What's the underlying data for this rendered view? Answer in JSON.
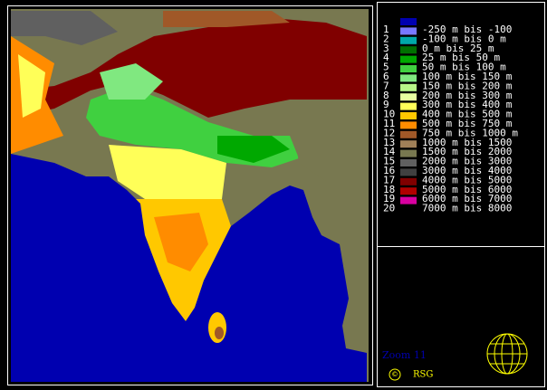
{
  "legend": {
    "items": [
      {
        "number": "1",
        "label": "-250 m bis -100",
        "color": "#0000b0"
      },
      {
        "number": "2",
        "label": "-100 m bis 0 m",
        "color": "#7878ff"
      },
      {
        "number": "3",
        "label": "0 m bis 25 m",
        "color": "#00a8a8"
      },
      {
        "number": "4",
        "label": "25 m bis 50 m",
        "color": "#007000"
      },
      {
        "number": "5",
        "label": "50 m bis 100 m",
        "color": "#00a800"
      },
      {
        "number": "6",
        "label": "100 m bis 150 m",
        "color": "#40d040"
      },
      {
        "number": "7",
        "label": "150 m bis 200 m",
        "color": "#80e880"
      },
      {
        "number": "8",
        "label": "200 m bis 300 m",
        "color": "#b8f888"
      },
      {
        "number": "9",
        "label": "300 m bis 400 m",
        "color": "#e8ffa0"
      },
      {
        "number": "10",
        "label": "400 m bis 500 m",
        "color": "#ffff58"
      },
      {
        "number": "11",
        "label": "500 m bis 750 m",
        "color": "#ffc800"
      },
      {
        "number": "12",
        "label": "750 m bis 1000 m",
        "color": "#ff8c00"
      },
      {
        "number": "13",
        "label": "1000 m bis 1500",
        "color": "#a05828"
      },
      {
        "number": "14",
        "label": "1500 m bis 2000",
        "color": "#a08058"
      },
      {
        "number": "15",
        "label": "2000 m bis 3000",
        "color": "#787850"
      },
      {
        "number": "16",
        "label": "3000 m bis 4000",
        "color": "#606060"
      },
      {
        "number": "17",
        "label": "4000 m bis 5000",
        "color": "#404040"
      },
      {
        "number": "18",
        "label": "5000 m bis 6000",
        "color": "#800000"
      },
      {
        "number": "19",
        "label": "6000 m bis 7000",
        "color": "#b00000"
      },
      {
        "number": "20",
        "label": "7000 m bis 8000",
        "color": "#d800a0"
      }
    ]
  },
  "footer": {
    "zoom": "Zoom 11",
    "copyright": "©",
    "brand": "RSG"
  }
}
